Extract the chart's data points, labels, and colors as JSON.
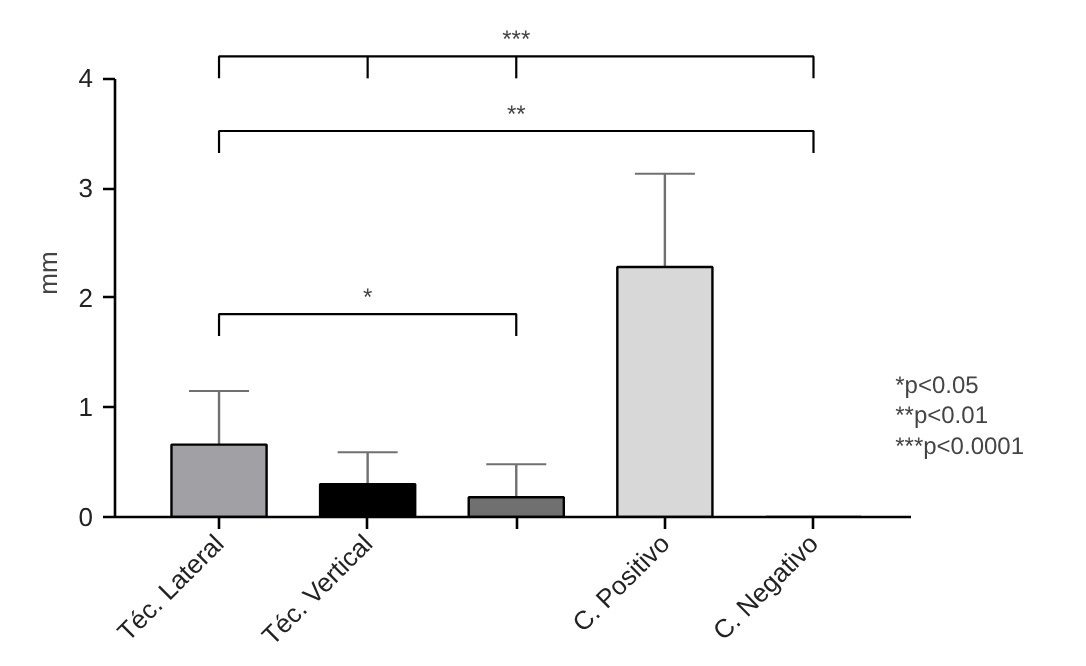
{
  "chart_data": {
    "type": "bar",
    "ylabel": "mm",
    "categories": [
      "Téc. Lateral",
      "Téc. Vertical",
      null,
      "C. Positivo",
      "C. Negativo"
    ],
    "values": [
      0.66,
      0.3,
      0.18,
      2.28,
      0
    ],
    "colors": [
      "#a0a0a5",
      "#000000",
      "#707070",
      "#d8d8d8",
      "#ffffff"
    ],
    "errors": [
      [
        0.66,
        1.15
      ],
      [
        0.3,
        0.59
      ],
      [
        0.18,
        0.48
      ],
      [
        2.28,
        3.13
      ],
      null
    ],
    "ylim": [
      0,
      4
    ],
    "yticks": [
      0,
      1,
      2,
      3,
      4
    ],
    "grid": false,
    "annotations": [
      "***",
      "**",
      "*",
      "*p<0.05",
      "**p<0.01",
      "***p<0.0001"
    ]
  }
}
